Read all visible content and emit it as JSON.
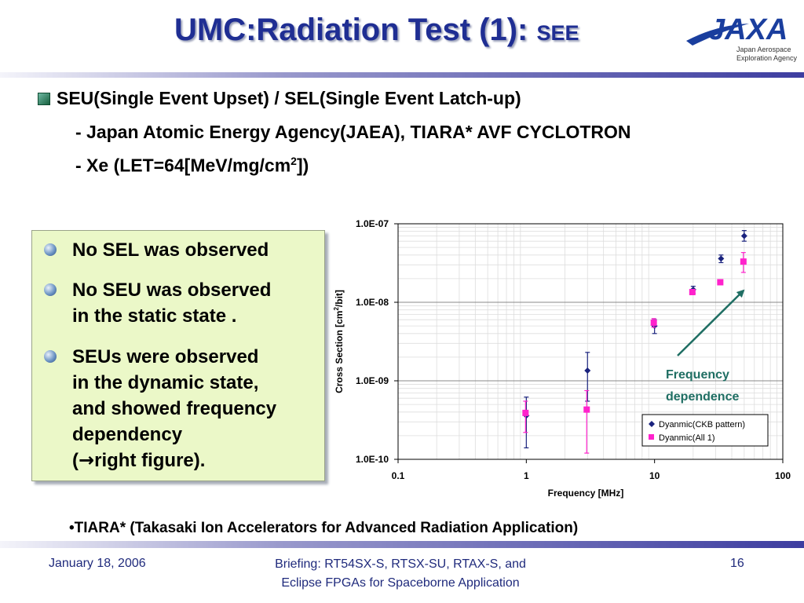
{
  "slide": {
    "title": "UMC:Radiation Test (1): ",
    "title_small": "SEE",
    "logo_text": "JAXA",
    "logo_sub1": "Japan Aerospace",
    "logo_sub2": "Exploration Agency",
    "bullet_main": "SEU(Single Event Upset) / SEL(Single Event Latch-up)",
    "bullet_sub1": "- Japan Atomic Energy Agency(JAEA), TIARA* AVF CYCLOTRON",
    "bullet_sub2_a": "- Xe (LET=64[MeV/mg/cm",
    "bullet_sub2_sup": "2",
    "bullet_sub2_b": "])",
    "box_items": [
      {
        "lines": [
          "No SEL was observed"
        ]
      },
      {
        "lines": [
          "No SEU was observed",
          "in the static state ."
        ]
      },
      {
        "lines": [
          "SEUs were observed",
          "in the dynamic state,",
          "and showed frequency",
          "dependency"
        ]
      }
    ],
    "box_last_arrow": "→",
    "box_last_text": "right figure).",
    "box_last_open": "(",
    "footnote": "•TIARA* (Takasaki Ion Accelerators for Advanced Radiation Application)",
    "footer": {
      "date": "January 18, 2006",
      "briefing_line1": "Briefing: RT54SX-S, RTSX-SU, RTAX-S, and",
      "briefing_line2": "Eclipse FPGAs for Spaceborne Application",
      "page": "16"
    }
  },
  "chart_data": {
    "type": "scatter",
    "xscale": "log",
    "yscale": "log",
    "xlim": [
      0.1,
      100
    ],
    "ylim": [
      1e-10,
      1e-07
    ],
    "xlabel": "Frequency [MHz]",
    "ylabel": "Cross Section [cm",
    "ylabel_sup": "2",
    "ylabel_end": "/bit]",
    "x_ticks": [
      "0.1",
      "1",
      "10",
      "100"
    ],
    "y_ticks": [
      "1.0E-10",
      "1.0E-09",
      "1.0E-08",
      "1.0E-07"
    ],
    "grid": true,
    "legend_position": "bottom-right",
    "annotation_line1": "Frequency",
    "annotation_line2": "dependence",
    "colors": {
      "series1": "#1a237e",
      "series2": "#ff22cc",
      "annotation": "#1f6e63"
    },
    "series": [
      {
        "name": "Dyanmic(CKB pattern)",
        "marker": "diamond",
        "x": [
          1,
          3,
          10,
          20,
          33,
          50
        ],
        "y": [
          3.6e-10,
          1.35e-09,
          5e-09,
          1.45e-08,
          3.6e-08,
          7e-08
        ],
        "y_low": [
          1.4e-10,
          5.5e-10,
          4e-09,
          1.3e-08,
          3.2e-08,
          6e-08
        ],
        "y_high": [
          6.2e-10,
          2.3e-09,
          6e-09,
          1.6e-08,
          4e-08,
          8.2e-08
        ]
      },
      {
        "name": "Dyanmic(All 1)",
        "marker": "square",
        "x": [
          1,
          3,
          10,
          20,
          33,
          50
        ],
        "y": [
          3.9e-10,
          4.3e-10,
          5.5e-09,
          1.35e-08,
          1.8e-08,
          3.3e-08
        ],
        "y_low": [
          2.2e-10,
          1.2e-10,
          4.8e-09,
          1.25e-08,
          1.7e-08,
          2.4e-08
        ],
        "y_high": [
          5.5e-10,
          7.5e-10,
          6.2e-09,
          1.45e-08,
          1.9e-08,
          4.3e-08
        ]
      }
    ]
  }
}
